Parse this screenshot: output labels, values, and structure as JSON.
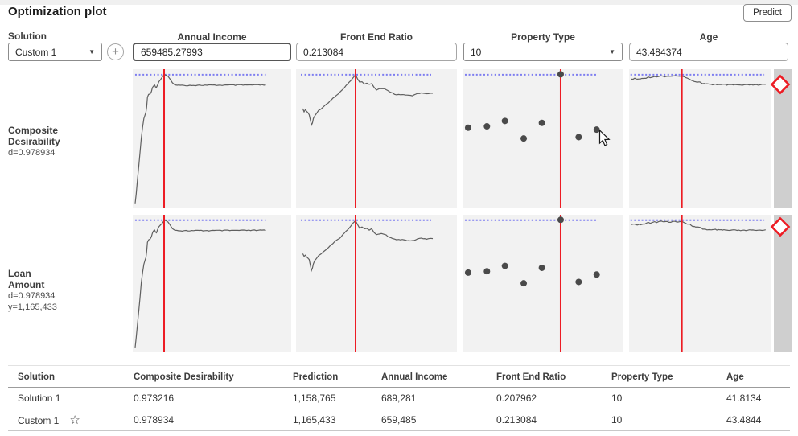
{
  "title": "Optimization plot",
  "toolbar": {
    "predict_label": "Predict"
  },
  "solution_panel": {
    "label": "Solution",
    "selected": "Custom 1"
  },
  "factors": [
    {
      "name": "Annual Income",
      "value": "659485.27993",
      "control": "text",
      "focused": true
    },
    {
      "name": "Front End Ratio",
      "value": "0.213084",
      "control": "text",
      "focused": false
    },
    {
      "name": "Property Type",
      "value": "10",
      "control": "select",
      "focused": false
    },
    {
      "name": "Age",
      "value": "43.484374",
      "control": "text",
      "focused": false
    }
  ],
  "responses": [
    {
      "title_lines": [
        "Composite",
        "Desirability"
      ],
      "stats": [
        "d=0.978934"
      ]
    },
    {
      "title_lines": [
        "Loan",
        "Amount"
      ],
      "stats": [
        "d=0.978934",
        "y=1,165,433"
      ]
    }
  ],
  "chart_data": {
    "type": "line",
    "description": "Profile panels: response/desirability vs each factor. Red vertical line = current factor setting; blue dotted line = current response level. Same profiles shown for both response rows.",
    "dotted_y_pct": 4,
    "red_line_x_pct": [
      19.8,
      37.0,
      61.1,
      37.3
    ],
    "dotted_extent_pct": [
      [
        1.5,
        84
      ],
      [
        3,
        84
      ],
      [
        1,
        84
      ],
      [
        1,
        95.5
      ]
    ],
    "panels": [
      {
        "factor": "Annual Income",
        "kind": "curve",
        "points": [
          [
            1.5,
            97
          ],
          [
            2.2,
            90
          ],
          [
            3,
            80
          ],
          [
            3.8,
            70
          ],
          [
            4.6,
            60
          ],
          [
            5.4,
            50
          ],
          [
            6.2,
            42
          ],
          [
            7,
            36
          ],
          [
            7.8,
            33
          ],
          [
            8.3,
            31
          ],
          [
            8.8,
            27
          ],
          [
            9.3,
            20
          ],
          [
            10,
            18.5
          ],
          [
            11,
            17.5
          ],
          [
            11.8,
            16
          ],
          [
            12.4,
            13.5
          ],
          [
            13,
            12
          ],
          [
            13.8,
            11.5
          ],
          [
            14.4,
            12.8
          ],
          [
            15,
            13.2
          ],
          [
            15.6,
            11.5
          ],
          [
            16.5,
            9
          ],
          [
            17.5,
            7.5
          ],
          [
            18.5,
            6
          ],
          [
            19.4,
            4.8
          ],
          [
            20.3,
            4.2
          ],
          [
            21.2,
            4.5
          ],
          [
            22.3,
            5.5
          ],
          [
            23.6,
            7.5
          ],
          [
            25,
            9.8
          ],
          [
            26.5,
            11
          ],
          [
            28,
            11.5
          ],
          [
            30,
            11.7
          ],
          [
            84,
            11.4
          ]
        ]
      },
      {
        "factor": "Front End Ratio",
        "kind": "curve",
        "points": [
          [
            4.2,
            28.5
          ],
          [
            5,
            30.5
          ],
          [
            5.8,
            29.5
          ],
          [
            6.6,
            30.5
          ],
          [
            7.4,
            31.5
          ],
          [
            8.2,
            33
          ],
          [
            8.8,
            36
          ],
          [
            9.6,
            40.5
          ],
          [
            10.2,
            39
          ],
          [
            10.8,
            35.5
          ],
          [
            11.6,
            33.5
          ],
          [
            12.6,
            32
          ],
          [
            14,
            30
          ],
          [
            15.5,
            28.5
          ],
          [
            17,
            27
          ],
          [
            18.6,
            25.5
          ],
          [
            20.2,
            24
          ],
          [
            22,
            22
          ],
          [
            24,
            20
          ],
          [
            26,
            18
          ],
          [
            28,
            16
          ],
          [
            30,
            13.5
          ],
          [
            32,
            11
          ],
          [
            34,
            8
          ],
          [
            35.5,
            6
          ],
          [
            37,
            4.2
          ],
          [
            38.2,
            7
          ],
          [
            39.5,
            9.5
          ],
          [
            41,
            9
          ],
          [
            42.5,
            10.5
          ],
          [
            44,
            9.8
          ],
          [
            45.5,
            11
          ],
          [
            47,
            10.3
          ],
          [
            48.5,
            13
          ],
          [
            50,
            14.8
          ],
          [
            52,
            14.2
          ],
          [
            54,
            13.8
          ],
          [
            56,
            14.8
          ],
          [
            58,
            16.5
          ],
          [
            60,
            17.5
          ],
          [
            62.5,
            18.5
          ],
          [
            65,
            18.2
          ],
          [
            68,
            18.8
          ],
          [
            71,
            19.2
          ],
          [
            73.5,
            18.8
          ],
          [
            75.5,
            17.8
          ],
          [
            78,
            17.3
          ],
          [
            81,
            17.8
          ],
          [
            85,
            17.4
          ]
        ]
      },
      {
        "factor": "Property Type",
        "kind": "scatter",
        "x": [
          3.0,
          14.8,
          26.1,
          37.9,
          49.3,
          61.1,
          72.4,
          83.7
        ],
        "y": [
          42.3,
          41.3,
          37.4,
          50.1,
          38.8,
          3.7,
          49.1,
          43.7
        ]
      },
      {
        "factor": "Age",
        "kind": "curve",
        "points": [
          [
            1.7,
            7.2
          ],
          [
            4,
            6.8
          ],
          [
            6,
            7.3
          ],
          [
            8,
            7
          ],
          [
            10,
            6.8
          ],
          [
            12,
            6.3
          ],
          [
            13.5,
            5.4
          ],
          [
            15,
            6.4
          ],
          [
            16.5,
            5.4
          ],
          [
            18,
            5
          ],
          [
            19.5,
            5.6
          ],
          [
            21,
            5
          ],
          [
            23,
            4.8
          ],
          [
            25,
            5.4
          ],
          [
            27,
            5
          ],
          [
            29.5,
            5.4
          ],
          [
            31.5,
            4.9
          ],
          [
            33.5,
            5.2
          ],
          [
            35.5,
            4.8
          ],
          [
            37.3,
            4.8
          ],
          [
            39,
            5.6
          ],
          [
            41,
            6.6
          ],
          [
            43,
            7.1
          ],
          [
            45,
            8.4
          ],
          [
            47,
            9
          ],
          [
            50,
            9.4
          ],
          [
            52,
            10.3
          ],
          [
            55,
            10.8
          ],
          [
            58,
            11.2
          ],
          [
            61,
            10.9
          ],
          [
            64,
            11.3
          ],
          [
            67,
            11.1
          ],
          [
            70,
            11.5
          ],
          [
            75,
            11.3
          ],
          [
            80,
            11.6
          ],
          [
            85,
            11.3
          ],
          [
            90,
            11.5
          ],
          [
            96.5,
            11
          ]
        ]
      }
    ]
  },
  "table": {
    "headers": [
      "Solution",
      "Composite Desirability",
      "Prediction",
      "Annual Income",
      "Front End Ratio",
      "Property Type",
      "Age"
    ],
    "rows": [
      {
        "cells": [
          "Solution 1",
          "0.973216",
          "1,158,765",
          "689,281",
          "0.207962",
          "10",
          "41.8134"
        ],
        "starred": false
      },
      {
        "cells": [
          "Custom 1",
          "0.978934",
          "1,165,433",
          "659,485",
          "0.213084",
          "10",
          "43.4844"
        ],
        "starred": true
      }
    ]
  },
  "icons": {
    "dropdown_arrow": "▼",
    "star": "☆",
    "plus": "+"
  },
  "colors": {
    "red_line": "#ed1c24",
    "dotted_line": "#7d7df0",
    "curve": "#5f5f5f",
    "point": "#4a4a4a",
    "plot_bg": "#f2f2f2",
    "strip": "#cfcfcf"
  }
}
